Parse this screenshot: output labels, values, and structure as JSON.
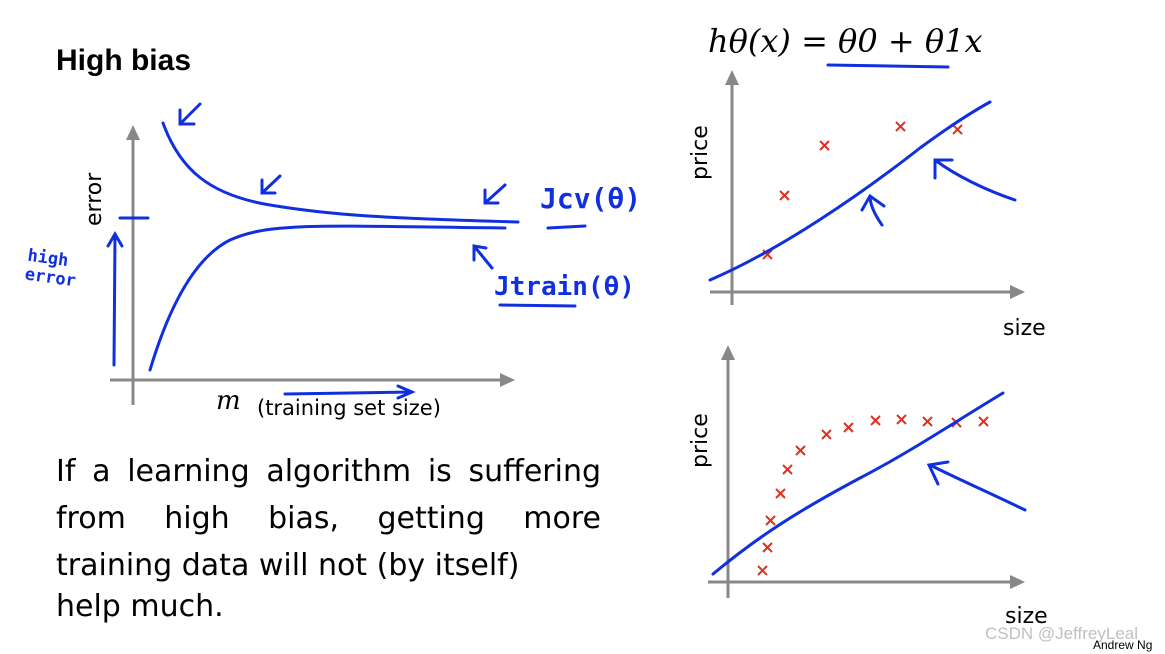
{
  "slide": {
    "title": "High bias",
    "caption_lines": [
      "If a learning algorithm is suffering from high bias, getting more training data will not (by itself)"
    ],
    "caption_last": "help much."
  },
  "learning_curve": {
    "y_label": "error",
    "x_symbol": "m",
    "x_label": "(training set size)",
    "cv_label": "Jcv(θ)",
    "train_label": "Jtrain(θ)",
    "high_error_note": [
      "high",
      "error"
    ]
  },
  "hypothesis": "hθ(x) = θ0 + θ1x",
  "plot_top": {
    "ylabel": "price",
    "xlabel": "size"
  },
  "plot_bottom": {
    "ylabel": "price",
    "xlabel": "size"
  },
  "footer": {
    "watermark": "CSDN @JeffreyLeal",
    "author": "Andrew Ng"
  },
  "colors": {
    "ink": "#1030e0",
    "marker": "#e03020",
    "axis": "#888888"
  }
}
